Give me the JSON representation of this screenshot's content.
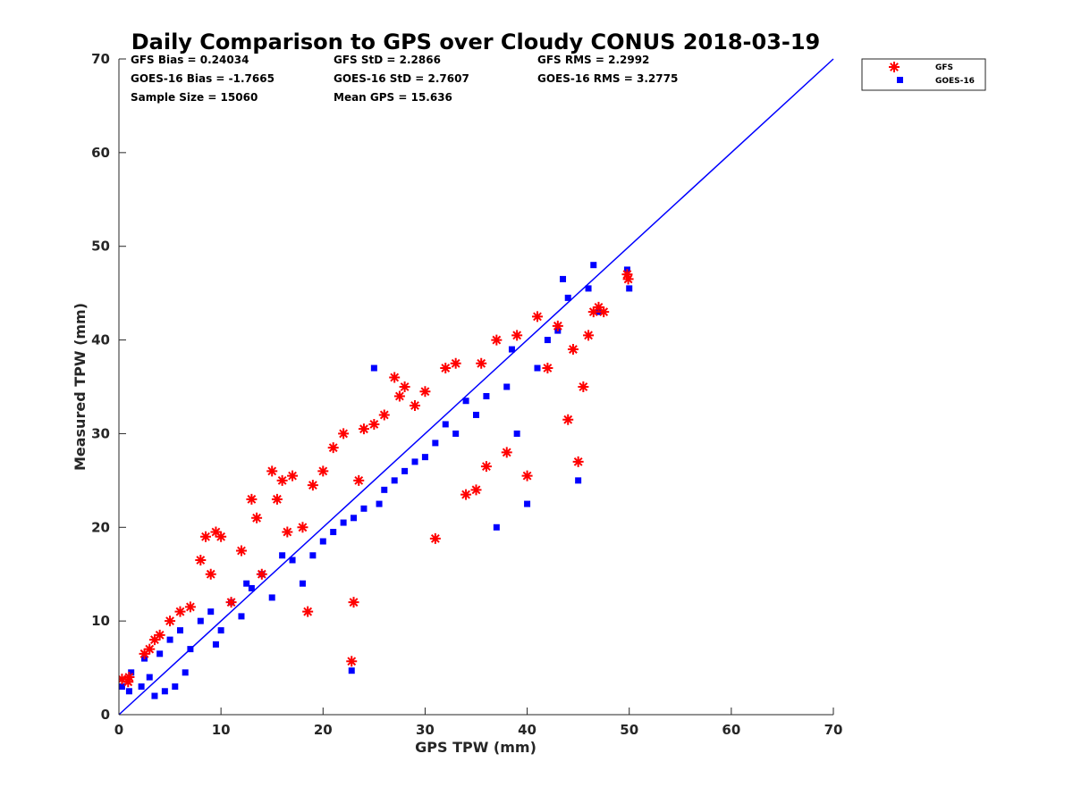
{
  "colors": {
    "gfs": "#ff0000",
    "goes": "#0000ff",
    "axis": "#262626",
    "background": "#ffffff"
  },
  "chart_data": {
    "type": "scatter",
    "title": "Daily Comparison to GPS over Cloudy CONUS 2018-03-19",
    "xlabel": "GPS TPW (mm)",
    "ylabel": "Measured TPW (mm)",
    "xlim": [
      0,
      70
    ],
    "ylim": [
      0,
      70
    ],
    "xticks": [
      0,
      10,
      20,
      30,
      40,
      50,
      60,
      70
    ],
    "yticks": [
      0,
      10,
      20,
      30,
      40,
      50,
      60,
      70
    ],
    "legend_position": "outside-top-right",
    "reference_line": {
      "name": "1:1 line",
      "x": [
        0,
        70
      ],
      "y": [
        0,
        70
      ]
    },
    "stats": [
      "GFS Bias = 0.24034",
      "GFS StD = 2.2866",
      "GFS RMS = 2.2992",
      "GOES-16 Bias = -1.7665",
      "GOES-16 StD = 2.7607",
      "GOES-16 RMS = 3.2775",
      "Sample Size = 15060",
      "Mean GPS = 15.636"
    ],
    "series": [
      {
        "name": "GFS",
        "marker": "asterisk",
        "color": "#ff0000",
        "x": [
          0.3,
          0.9,
          1.0,
          2.5,
          3.0,
          3.5,
          4.0,
          5.0,
          6.0,
          7.0,
          8.0,
          8.5,
          9.0,
          9.5,
          10.0,
          11.0,
          12.0,
          13.0,
          13.5,
          14.0,
          15.0,
          15.5,
          16.0,
          16.5,
          17.0,
          18.0,
          18.5,
          19.0,
          20.0,
          21.0,
          22.0,
          22.8,
          23.0,
          23.5,
          24.0,
          25.0,
          26.0,
          27.0,
          27.5,
          28.0,
          29.0,
          30.0,
          31.0,
          32.0,
          33.0,
          34.0,
          35.0,
          35.5,
          36.0,
          37.0,
          38.0,
          39.0,
          40.0,
          41.0,
          42.0,
          43.0,
          44.0,
          44.5,
          45.0,
          45.5,
          46.0,
          46.5,
          47.0,
          47.5,
          49.8,
          49.9
        ],
        "y": [
          3.8,
          3.5,
          4.0,
          6.5,
          7.0,
          8.0,
          8.5,
          10.0,
          11.0,
          11.5,
          16.5,
          19.0,
          15.0,
          19.5,
          19.0,
          12.0,
          17.5,
          23.0,
          21.0,
          15.0,
          26.0,
          23.0,
          25.0,
          19.5,
          25.5,
          20.0,
          11.0,
          24.5,
          26.0,
          28.5,
          30.0,
          5.7,
          12.0,
          25.0,
          30.5,
          31.0,
          32.0,
          36.0,
          34.0,
          35.0,
          33.0,
          34.5,
          18.8,
          37.0,
          37.5,
          23.5,
          24.0,
          37.5,
          26.5,
          40.0,
          28.0,
          40.5,
          25.5,
          42.5,
          37.0,
          41.5,
          31.5,
          39.0,
          27.0,
          35.0,
          40.5,
          43.0,
          43.5,
          43.0,
          47.0,
          46.5
        ]
      },
      {
        "name": "GOES-16",
        "marker": "square",
        "color": "#0000ff",
        "x": [
          0.3,
          1.0,
          1.2,
          2.2,
          2.5,
          3.0,
          3.5,
          4.0,
          4.5,
          5.0,
          5.5,
          6.0,
          6.5,
          7.0,
          8.0,
          9.0,
          9.5,
          10.0,
          11.0,
          12.0,
          12.5,
          13.0,
          14.0,
          15.0,
          16.0,
          17.0,
          18.0,
          19.0,
          20.0,
          21.0,
          22.0,
          22.8,
          23.0,
          24.0,
          25.0,
          25.5,
          26.0,
          27.0,
          28.0,
          29.0,
          30.0,
          31.0,
          32.0,
          33.0,
          34.0,
          35.0,
          36.0,
          37.0,
          38.0,
          38.5,
          39.0,
          40.0,
          41.0,
          42.0,
          43.0,
          43.5,
          44.0,
          45.0,
          46.0,
          46.5,
          47.0,
          49.8,
          50.0
        ],
        "y": [
          3.0,
          2.5,
          4.5,
          3.0,
          6.0,
          4.0,
          2.0,
          6.5,
          2.5,
          8.0,
          3.0,
          9.0,
          4.5,
          7.0,
          10.0,
          11.0,
          7.5,
          9.0,
          12.0,
          10.5,
          14.0,
          13.5,
          15.0,
          12.5,
          17.0,
          16.5,
          14.0,
          17.0,
          18.5,
          19.5,
          20.5,
          4.7,
          21.0,
          22.0,
          37.0,
          22.5,
          24.0,
          25.0,
          26.0,
          27.0,
          27.5,
          29.0,
          31.0,
          30.0,
          33.5,
          32.0,
          34.0,
          20.0,
          35.0,
          39.0,
          30.0,
          22.5,
          37.0,
          40.0,
          41.0,
          46.5,
          44.5,
          25.0,
          45.5,
          48.0,
          43.0,
          47.5,
          45.5
        ]
      }
    ]
  }
}
